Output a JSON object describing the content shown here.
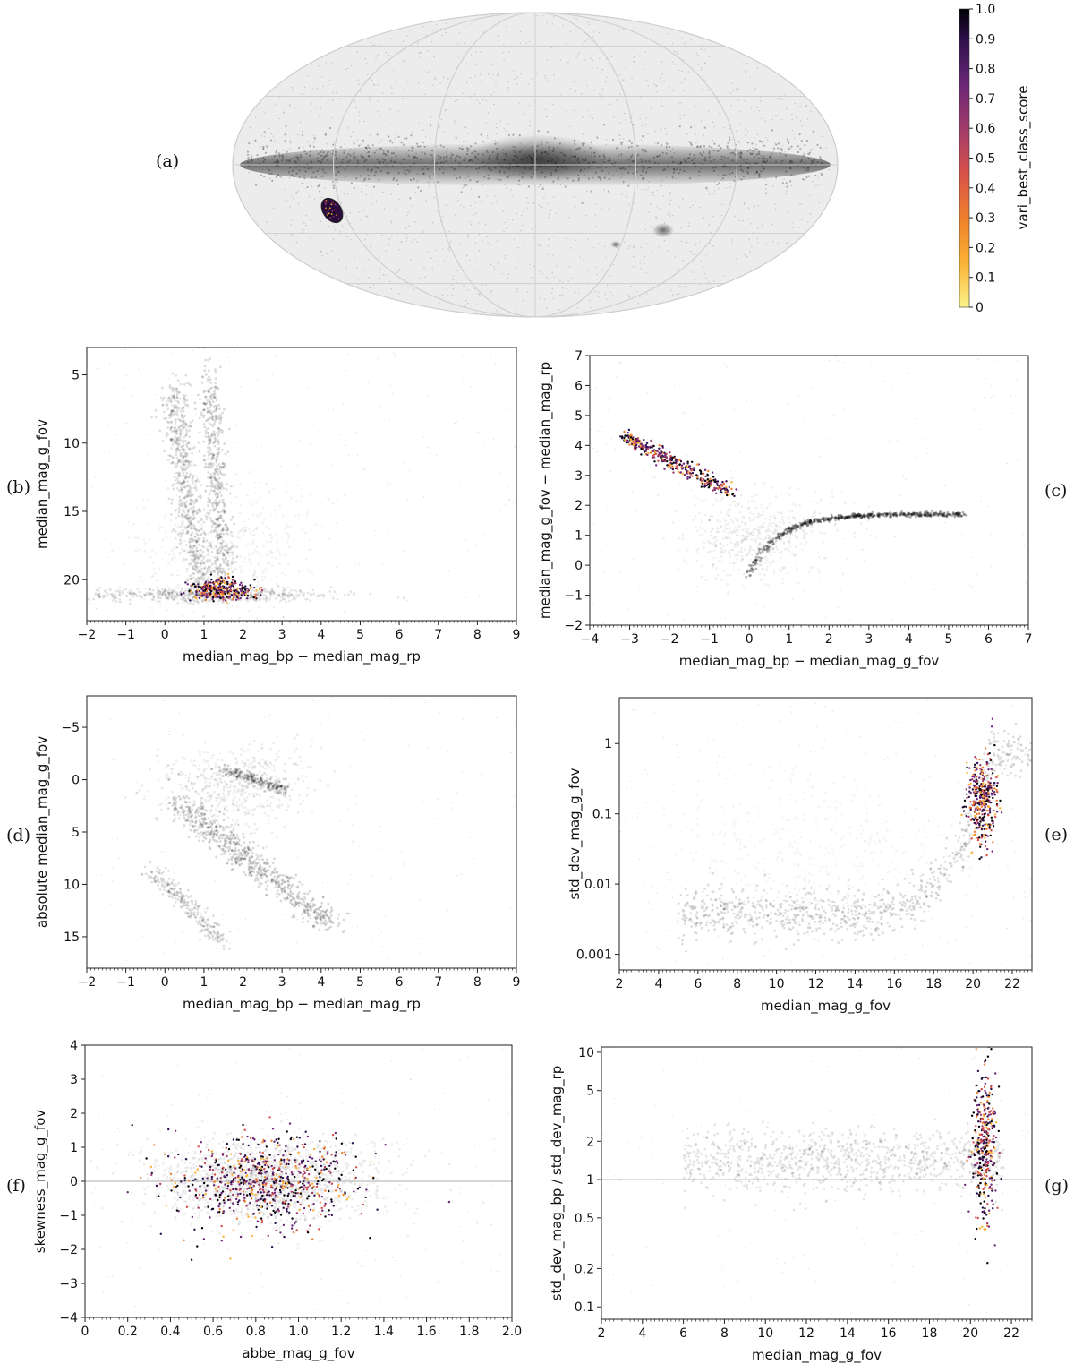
{
  "panels": [
    {
      "id": "a",
      "label": "(a)",
      "type": "sky-map",
      "projection": "aitoff-galactic"
    },
    {
      "id": "b",
      "label": "(b)",
      "type": "scatter",
      "xlabel": "median_mag_bp − median_mag_rp",
      "ylabel": "median_mag_g_fov",
      "xlim": [
        -2,
        9
      ],
      "ylim": [
        23,
        3
      ],
      "xticks": [
        -2,
        -1,
        0,
        1,
        2,
        3,
        4,
        5,
        6,
        7,
        8,
        9
      ],
      "yticks": [
        5,
        10,
        15,
        20
      ],
      "yscale": "linear",
      "yinverted": true
    },
    {
      "id": "c",
      "label": "(c)",
      "type": "scatter",
      "xlabel": "median_mag_bp − median_mag_g_fov",
      "ylabel": "median_mag_g_fov − median_mag_rp",
      "xlim": [
        -4,
        7
      ],
      "ylim": [
        -2,
        7
      ],
      "xticks": [
        -4,
        -3,
        -2,
        -1,
        0,
        1,
        2,
        3,
        4,
        5,
        6,
        7
      ],
      "yticks": [
        -2,
        -1,
        0,
        1,
        2,
        3,
        4,
        5,
        6,
        7
      ],
      "yscale": "linear",
      "yinverted": false
    },
    {
      "id": "d",
      "label": "(d)",
      "type": "scatter",
      "xlabel": "median_mag_bp − median_mag_rp",
      "ylabel": "absolute median_mag_g_fov",
      "xlim": [
        -2,
        9
      ],
      "ylim": [
        18,
        -8
      ],
      "xticks": [
        -2,
        -1,
        0,
        1,
        2,
        3,
        4,
        5,
        6,
        7,
        8,
        9
      ],
      "yticks": [
        -5,
        0,
        5,
        10,
        15
      ],
      "yscale": "linear",
      "yinverted": true
    },
    {
      "id": "e",
      "label": "(e)",
      "type": "scatter",
      "xlabel": "median_mag_g_fov",
      "ylabel": "std_dev_mag_g_fov",
      "xlim": [
        2,
        23
      ],
      "ylim": [
        0.0006,
        4.5
      ],
      "xticks": [
        2,
        4,
        6,
        8,
        10,
        12,
        14,
        16,
        18,
        20,
        22
      ],
      "yticks": [
        0.001,
        0.01,
        0.1,
        1
      ],
      "ytick_labels": [
        "0.001",
        "0.01",
        "0.1",
        "1"
      ],
      "yscale": "log",
      "yinverted": false
    },
    {
      "id": "f",
      "label": "(f)",
      "type": "scatter",
      "xlabel": "abbe_mag_g_fov",
      "ylabel": "skewness_mag_g_fov",
      "xlim": [
        0,
        2
      ],
      "ylim": [
        -4,
        4
      ],
      "xticks": [
        0,
        0.2,
        0.4,
        0.6,
        0.8,
        1.0,
        1.2,
        1.4,
        1.6,
        1.8,
        2.0
      ],
      "xtick_labels": [
        "0",
        "0.2",
        "0.4",
        "0.6",
        "0.8",
        "1.0",
        "1.2",
        "1.4",
        "1.6",
        "1.8",
        "2.0"
      ],
      "yticks": [
        -4,
        -3,
        -2,
        -1,
        0,
        1,
        2,
        3,
        4
      ],
      "yscale": "linear",
      "yinverted": false
    },
    {
      "id": "g",
      "label": "(g)",
      "type": "scatter",
      "xlabel": "median_mag_g_fov",
      "ylabel": "std_dev_mag_bp / std_dev_mag_rp",
      "xlim": [
        2,
        23
      ],
      "ylim": [
        0.08,
        11
      ],
      "xticks": [
        2,
        4,
        6,
        8,
        10,
        12,
        14,
        16,
        18,
        20,
        22
      ],
      "yticks": [
        0.1,
        0.2,
        0.5,
        1,
        2,
        5,
        10
      ],
      "ytick_labels": [
        "0.1",
        "0.2",
        "0.5",
        "1",
        "2",
        "5",
        "10"
      ],
      "yscale": "log",
      "yinverted": false
    }
  ],
  "colorbar": {
    "label": "vari_best_class_score",
    "min": 0,
    "max": 1,
    "ticks": [
      0,
      0.1,
      0.2,
      0.3,
      0.4,
      0.5,
      0.6,
      0.7,
      0.8,
      0.9,
      1.0
    ],
    "tick_labels": [
      "0",
      "0.1",
      "0.2",
      "0.3",
      "0.4",
      "0.5",
      "0.6",
      "0.7",
      "0.8",
      "0.9",
      "1.0"
    ],
    "colormap": "inferno_r"
  },
  "chart_data": [
    {
      "panel": "b",
      "type": "scatter",
      "series": [
        {
          "role": "background-density",
          "points": [
            [
              0.3,
              6
            ],
            [
              0.6,
              10
            ],
            [
              0.9,
              15
            ],
            [
              1.1,
              20
            ],
            [
              1.3,
              8
            ],
            [
              1.6,
              18
            ],
            [
              0.8,
              21
            ]
          ]
        },
        {
          "role": "highlighted",
          "points": [
            [
              1.0,
              20.6
            ],
            [
              1.4,
              20.3
            ],
            [
              1.6,
              20.8
            ],
            [
              1.9,
              20.9
            ],
            [
              1.2,
              21.0
            ]
          ]
        }
      ]
    },
    {
      "panel": "c",
      "type": "scatter",
      "series": [
        {
          "role": "background-density",
          "points": [
            [
              0,
              0
            ],
            [
              0.5,
              0.8
            ],
            [
              1,
              1.2
            ],
            [
              2,
              1.45
            ],
            [
              3,
              1.55
            ],
            [
              4,
              1.62
            ],
            [
              5,
              1.68
            ],
            [
              -1,
              1.5
            ]
          ]
        },
        {
          "role": "highlighted",
          "points": [
            [
              -3,
              4.2
            ],
            [
              -2.5,
              3.8
            ],
            [
              -2,
              3.4
            ],
            [
              -1.5,
              3.0
            ],
            [
              -1,
              2.7
            ],
            [
              -0.7,
              2.45
            ]
          ]
        }
      ]
    },
    {
      "panel": "d",
      "type": "scatter",
      "series": [
        {
          "role": "background-density",
          "points": [
            [
              0.1,
              0
            ],
            [
              1.2,
              -1
            ],
            [
              2.5,
              0.5
            ],
            [
              0.8,
              4
            ],
            [
              1.6,
              8
            ],
            [
              2.6,
              11
            ],
            [
              3.8,
              14
            ],
            [
              0.3,
              11
            ],
            [
              1,
              14
            ]
          ]
        }
      ]
    },
    {
      "panel": "e",
      "type": "scatter",
      "series": [
        {
          "role": "median-curve",
          "points": [
            [
              6,
              0.0075
            ],
            [
              8,
              0.007
            ],
            [
              10,
              0.006
            ],
            [
              11,
              0.0062
            ],
            [
              12,
              0.0055
            ],
            [
              14,
              0.005
            ],
            [
              16,
              0.007
            ],
            [
              18,
              0.016
            ],
            [
              20,
              0.06
            ],
            [
              21,
              0.15
            ],
            [
              22,
              0.7
            ],
            [
              23,
              0.75
            ]
          ]
        },
        {
          "role": "highlighted",
          "points": [
            [
              19.8,
              0.1
            ],
            [
              20.3,
              0.2
            ],
            [
              20.6,
              0.35
            ],
            [
              20.9,
              0.15
            ],
            [
              20.2,
              0.5
            ]
          ]
        }
      ]
    },
    {
      "panel": "f",
      "type": "scatter",
      "series": [
        {
          "role": "reference-line",
          "y": 0
        },
        {
          "role": "highlighted",
          "points": [
            [
              0.6,
              0.2
            ],
            [
              0.8,
              -0.3
            ],
            [
              1.0,
              0.4
            ],
            [
              0.9,
              -1.0
            ],
            [
              1.1,
              0.8
            ],
            [
              0.7,
              0.9
            ]
          ]
        }
      ]
    },
    {
      "panel": "g",
      "type": "scatter",
      "series": [
        {
          "role": "reference-line",
          "y": 1
        },
        {
          "role": "highlighted",
          "points": [
            [
              20.5,
              1.5
            ],
            [
              20.8,
              2.5
            ],
            [
              20.3,
              1.0
            ],
            [
              21,
              3.5
            ],
            [
              20.6,
              0.7
            ]
          ]
        }
      ]
    }
  ]
}
